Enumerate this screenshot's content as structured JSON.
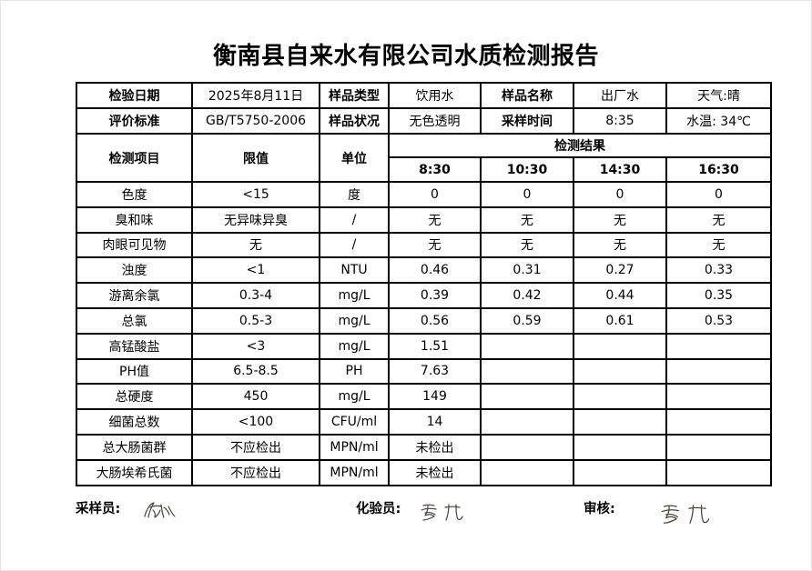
{
  "page": {
    "title": "衡南县自来水有限公司水质检测报告"
  },
  "info": {
    "row1": {
      "date_label": "检验日期",
      "date_value": "2025年8月11日",
      "sample_type_label": "样品类型",
      "sample_type_value": "饮用水",
      "sample_name_label": "样品名称",
      "sample_name_value": "出厂水",
      "weather": "天气:晴"
    },
    "row2": {
      "standard_label": "评价标准",
      "standard_value": "GB/T5750-2006",
      "sample_state_label": "样品状况",
      "sample_state_value": "无色透明",
      "sampling_time_label": "采样时间",
      "sampling_time_value": "8:35",
      "water_temp": "水温: 34℃"
    }
  },
  "results": {
    "header": {
      "item": "检测项目",
      "limit": "限值",
      "unit": "单位",
      "group": "检测结果",
      "times": [
        "8:30",
        "10:30",
        "14:30",
        "16:30"
      ]
    },
    "rows": [
      {
        "item": "色度",
        "limit": "<15",
        "unit": "度",
        "values": [
          "0",
          "0",
          "0",
          "0"
        ]
      },
      {
        "item": "臭和味",
        "limit": "无异味异臭",
        "unit": "/",
        "values": [
          "无",
          "无",
          "无",
          "无"
        ]
      },
      {
        "item": "肉眼可见物",
        "limit": "无",
        "unit": "/",
        "values": [
          "无",
          "无",
          "无",
          "无"
        ]
      },
      {
        "item": "浊度",
        "limit": "<1",
        "unit": "NTU",
        "values": [
          "0.46",
          "0.31",
          "0.27",
          "0.33"
        ]
      },
      {
        "item": "游离余氯",
        "limit": "0.3-4",
        "unit": "mg/L",
        "values": [
          "0.39",
          "0.42",
          "0.44",
          "0.35"
        ]
      },
      {
        "item": "总氯",
        "limit": "0.5-3",
        "unit": "mg/L",
        "values": [
          "0.56",
          "0.59",
          "0.61",
          "0.53"
        ]
      },
      {
        "item": "高锰酸盐",
        "limit": "<3",
        "unit": "mg/L",
        "values": [
          "1.51",
          "",
          "",
          ""
        ]
      },
      {
        "item": "PH值",
        "limit": "6.5-8.5",
        "unit": "PH",
        "values": [
          "7.63",
          "",
          "",
          ""
        ]
      },
      {
        "item": "总硬度",
        "limit": "450",
        "unit": "mg/L",
        "values": [
          "149",
          "",
          "",
          ""
        ]
      },
      {
        "item": "细菌总数",
        "limit": "<100",
        "unit": "CFU/ml",
        "values": [
          "14",
          "",
          "",
          ""
        ]
      },
      {
        "item": "总大肠菌群",
        "limit": "不应检出",
        "unit": "MPN/ml",
        "values": [
          "未检出",
          "",
          "",
          ""
        ]
      },
      {
        "item": "大肠埃希氏菌",
        "limit": "不应检出",
        "unit": "MPN/ml",
        "values": [
          "未检出",
          "",
          "",
          ""
        ]
      }
    ]
  },
  "footer": {
    "sampler_label": "采样员:",
    "tester_label": "化验员:",
    "reviewer_label": "审核:"
  }
}
